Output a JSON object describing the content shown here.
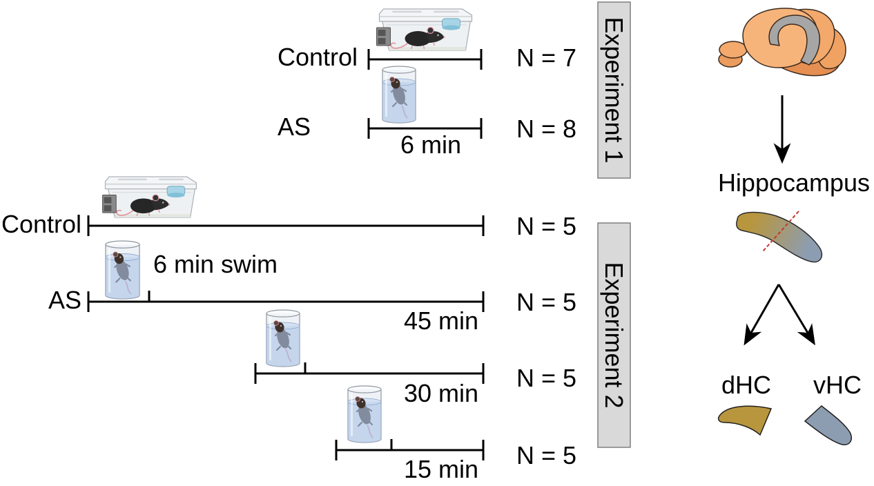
{
  "experiment_1": {
    "label": "Experiment 1",
    "control": {
      "label": "Control",
      "n": "N = 7"
    },
    "as": {
      "label": "AS",
      "n": "N = 8",
      "duration": "6 min"
    }
  },
  "experiment_2": {
    "label": "Experiment 2",
    "swim_label": "6 min swim",
    "control": {
      "label": "Control",
      "n": "N = 5"
    },
    "as_groups": [
      {
        "label": "AS",
        "n": "N = 5",
        "interval": "45 min"
      },
      {
        "n": "N = 5",
        "interval": "30 min"
      },
      {
        "n": "N = 5",
        "interval": "15 min"
      }
    ]
  },
  "tissue": {
    "region_label": "Hippocampus",
    "dorsal_label": "dHC",
    "ventral_label": "vHC"
  },
  "icons": {
    "home_cage": "home-cage-icon",
    "swim_beaker": "swim-beaker-icon",
    "brain": "mouse-brain-icon",
    "arrow": "arrow-down-icon"
  },
  "colors": {
    "brain": "#f7b47a",
    "hippocampus_in_brain": "#a6a6a6",
    "dorsal": "#b8963e",
    "ventral": "#8d9db1",
    "dissection_line": "#c0392b",
    "experiment_box": "#d9d9d9",
    "water": "#a9c2e6"
  }
}
